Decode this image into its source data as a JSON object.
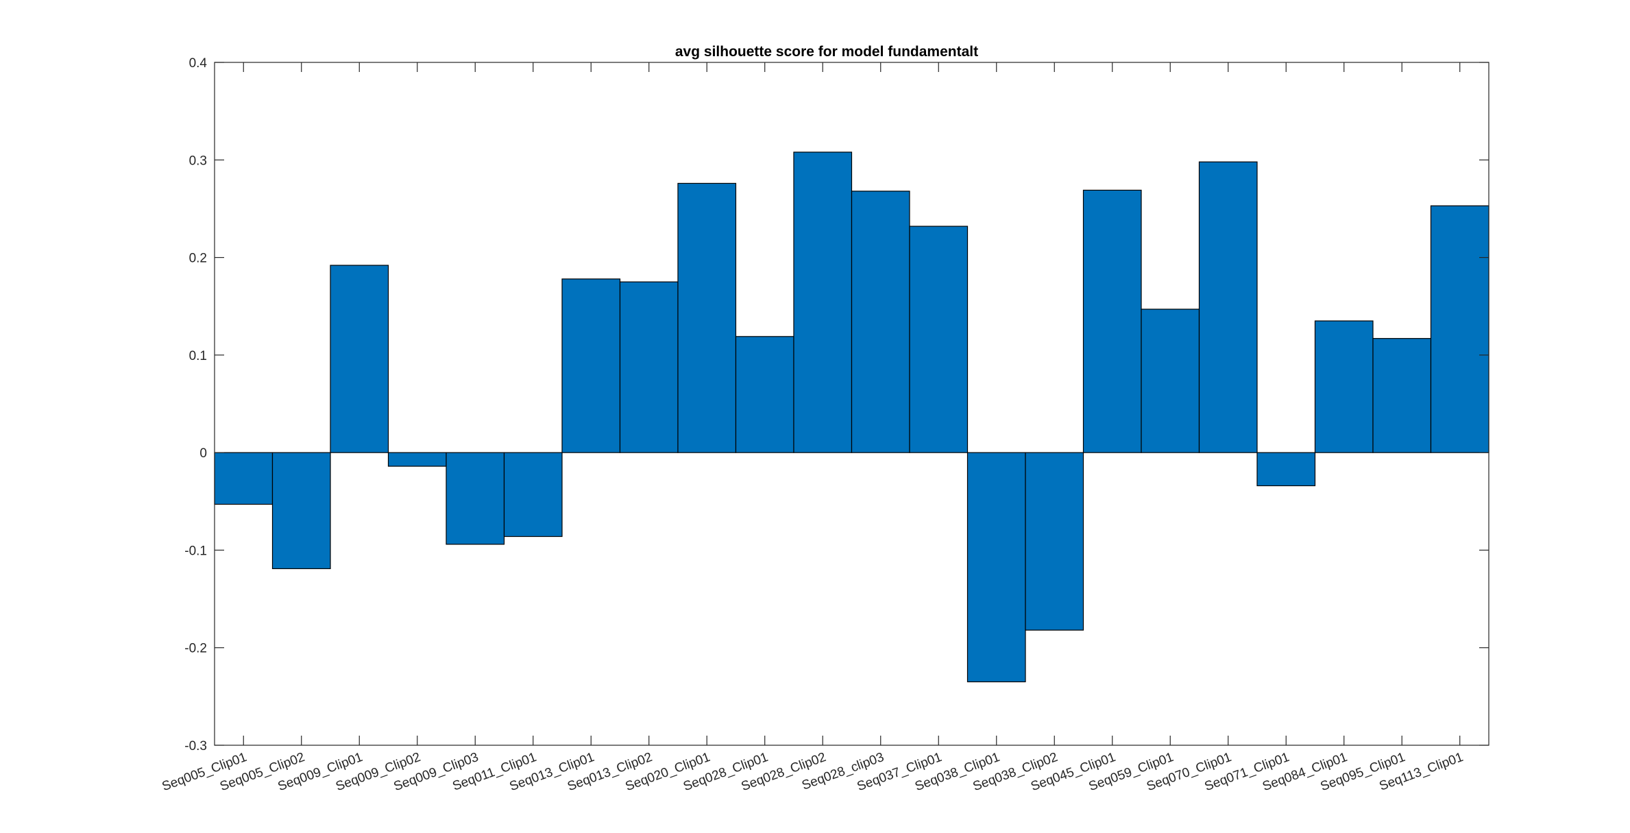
{
  "chart_data": {
    "type": "bar",
    "title": "avg silhouette score for model fundamentalt",
    "xlabel": "",
    "ylabel": "",
    "ylim": [
      -0.3,
      0.4
    ],
    "yticks": [
      "-0.3",
      "-0.2",
      "-0.1",
      "0",
      "0.1",
      "0.2",
      "0.3",
      "0.4"
    ],
    "yticks_values": [
      -0.3,
      -0.2,
      -0.1,
      0,
      0.1,
      0.2,
      0.3,
      0.4
    ],
    "grid": false,
    "bar_color": "#0072BD",
    "bar_edge_color": "#000000",
    "axis_color": "#262626",
    "categories": [
      "Seq005_Clip01",
      "Seq005_Clip02",
      "Seq009_Clip01",
      "Seq009_Clip02",
      "Seq009_Clip03",
      "Seq011_Clip01",
      "Seq013_Clip01",
      "Seq013_Clip02",
      "Seq020_Clip01",
      "Seq028_Clip01",
      "Seq028_Clip02",
      "Seq028_clip03",
      "Seq037_Clip01",
      "Seq038_Clip01",
      "Seq038_Clip02",
      "Seq045_Clip01",
      "Seq059_Clip01",
      "Seq070_Clip01",
      "Seq071_Clip01",
      "Seq084_Clip01",
      "Seq095_Clip01",
      "Seq113_Clip01"
    ],
    "values": [
      -0.053,
      -0.119,
      0.192,
      -0.014,
      -0.094,
      -0.086,
      0.178,
      0.175,
      0.276,
      0.119,
      0.308,
      0.268,
      0.232,
      -0.235,
      -0.182,
      0.269,
      0.147,
      0.298,
      -0.034,
      0.135,
      0.117,
      0.253
    ]
  }
}
